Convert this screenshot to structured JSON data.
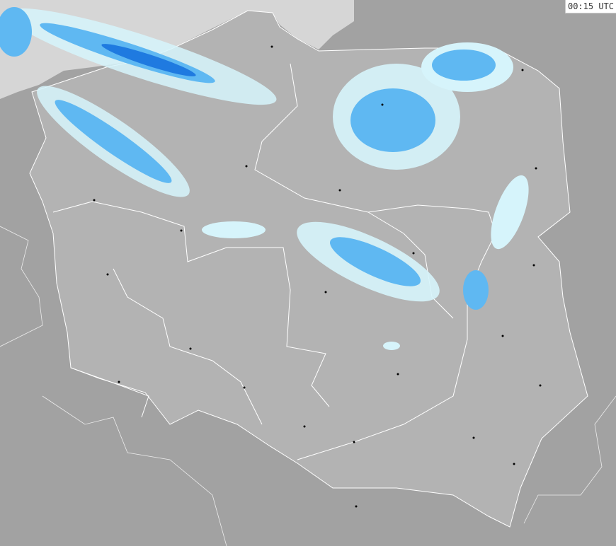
{
  "timestamp": "00:15 UTC",
  "colors": {
    "background": "#a2a2a2",
    "country": "#b3b3b3",
    "sea": "#d6d6d6",
    "border": "#ffffff",
    "rain_light": "#d6f4fb",
    "rain_mid": "#5fb8f2",
    "rain_heavy": "#1f7ae0",
    "rain_very_heavy": "#1552c8"
  },
  "legend": []
}
